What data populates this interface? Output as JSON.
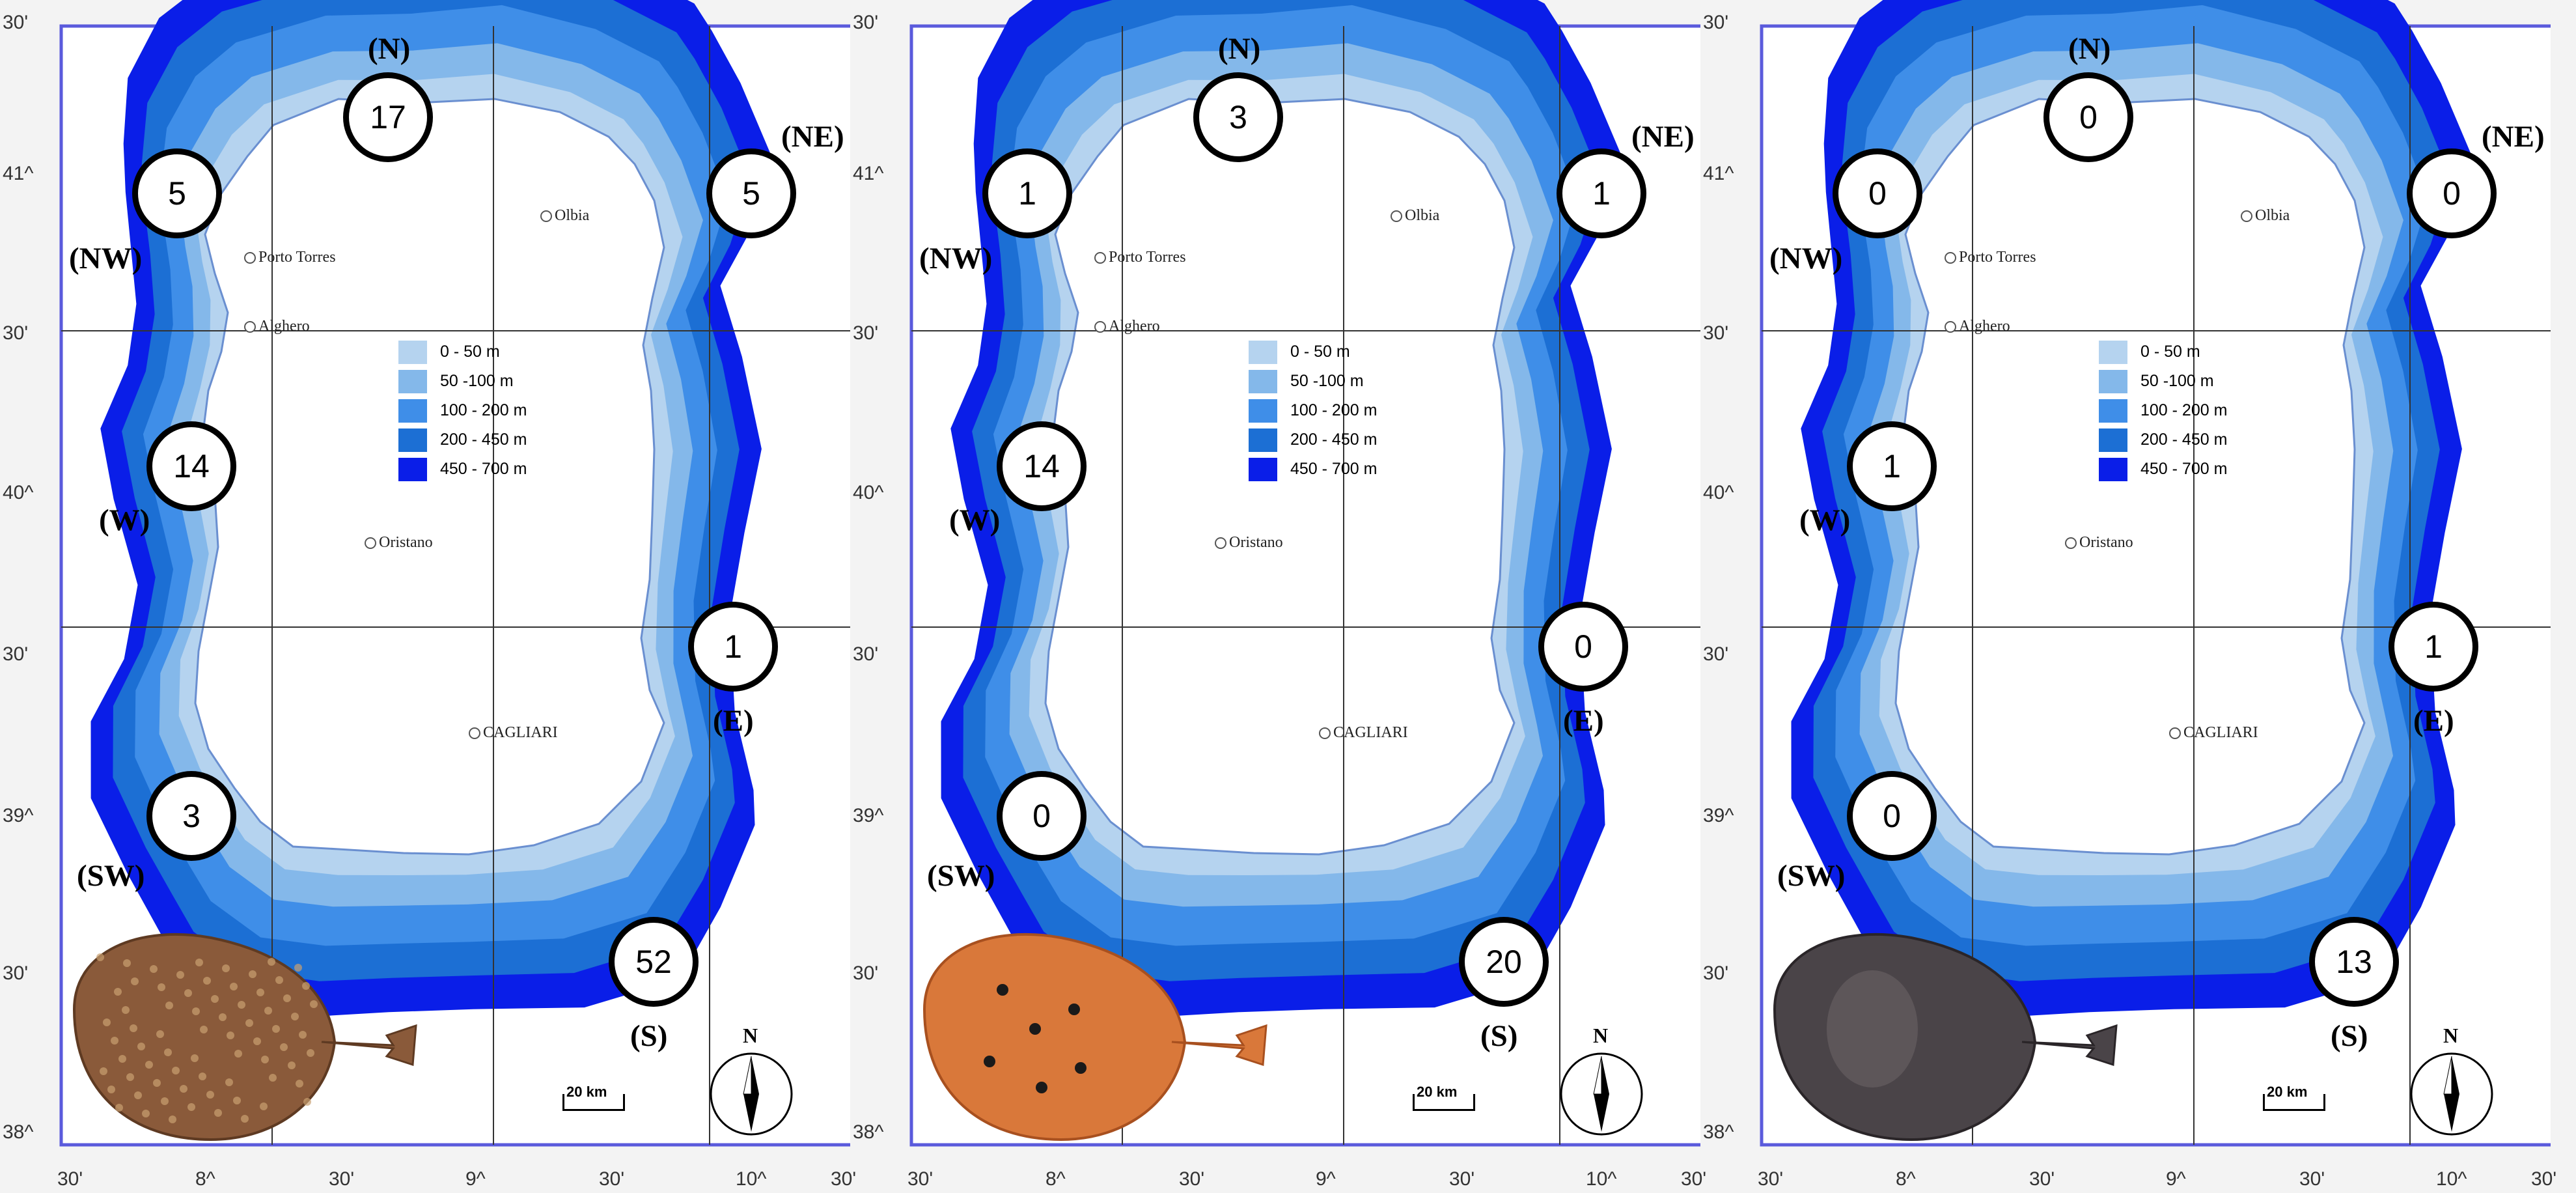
{
  "axes": {
    "y_labels": [
      "30'",
      "41^",
      "30'",
      "40^",
      "30'",
      "39^",
      "30'",
      "38^"
    ],
    "x_labels": [
      "30'",
      "8^",
      "30'",
      "9^",
      "30'",
      "10^",
      "30'"
    ]
  },
  "cities": {
    "porto_torres": "Porto Torres",
    "olbia": "Olbia",
    "alghero": "Alghero",
    "oristano": "Oristano",
    "cagliari": "CAGLIARI"
  },
  "legend": [
    "0 - 50 m",
    "50 -100 m",
    "100 - 200 m",
    "200 - 450 m",
    "450 - 700 m"
  ],
  "depth_colors": [
    "#b5d3ef",
    "#84b8ea",
    "#3f8ee8",
    "#1c6fd4",
    "#0a1ee8"
  ],
  "scale_bar": "20 km",
  "north": "N",
  "regions": {
    "N": "(N)",
    "NE": "(NE)",
    "NW": "(NW)",
    "W": "(W)",
    "E": "(E)",
    "SW": "(SW)",
    "S": "(S)"
  },
  "panels": [
    {
      "counts": {
        "N": "17",
        "NW": "5",
        "NE": "5",
        "W": "14",
        "E": "1",
        "SW": "3",
        "S": "52"
      },
      "species_image": "ray-rough-brown-spotted"
    },
    {
      "counts": {
        "N": "3",
        "NW": "1",
        "NE": "1",
        "W": "14",
        "E": "0",
        "SW": "0",
        "S": "20"
      },
      "species_image": "ray-orange-eyespots"
    },
    {
      "counts": {
        "N": "0",
        "NW": "0",
        "NE": "0",
        "W": "1",
        "E": "1",
        "SW": "0",
        "S": "13"
      },
      "species_image": "ray-dark-grey"
    }
  ]
}
